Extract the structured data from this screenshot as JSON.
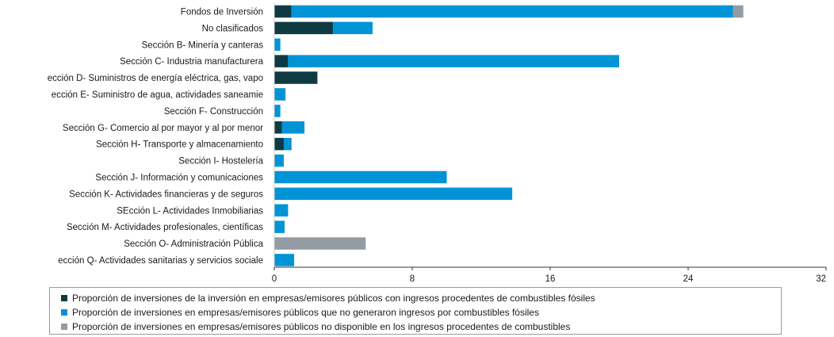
{
  "chart_data": {
    "type": "bar",
    "orientation": "horizontal",
    "stacked": true,
    "categories": [
      "Fondos de Inversión",
      "No clasificados",
      "Sección B- Minería y canteras",
      "Sección C- Industria manufacturera",
      "ección D- Suministros de energía eléctrica, gas, vapo",
      "ección E- Suministro de agua, actividades saneamie",
      "Sección F- Construcción",
      "Sección G- Comercio al por mayor y al por menor",
      "Sección H- Transporte y almacenamiento",
      "Sección I- Hostelería",
      "Sección J- Información y comunicaciones",
      "Sección K- Actividades financieras y de seguros",
      "SEcción L- Actividades Inmobiliarias",
      "Sección M- Actividades profesionales, científicas",
      "Sección O- Administración Pública",
      "ección Q- Actividades sanitarias y servicios sociale"
    ],
    "series": [
      {
        "name": "Proporción de inversiones de la inversión en empresas/emisores públicos con ingresos procedentes de combustibles fósiles",
        "color": "#0e3b43",
        "values": [
          1.0,
          3.4,
          0,
          0.8,
          2.5,
          0,
          0,
          0.45,
          0.55,
          0,
          0,
          0,
          0,
          0,
          0,
          0
        ]
      },
      {
        "name": "Proporción de inversiones en empresas/emisores públicos que no generaron ingresos por combustibles fósiles",
        "color": "#0094d6",
        "values": [
          25.6,
          2.3,
          0.35,
          19.2,
          0,
          0.65,
          0.35,
          1.3,
          0.45,
          0.55,
          10.0,
          13.8,
          0.8,
          0.6,
          0,
          1.15
        ]
      },
      {
        "name": "Proporción de inversiones en empresas/emisores públicos no disponible en los ingresos procedentes de combustibles",
        "color": "#949ca3",
        "values": [
          0.6,
          0,
          0,
          0,
          0,
          0,
          0,
          0,
          0,
          0,
          0,
          0,
          0,
          0,
          5.3,
          0
        ]
      }
    ],
    "xlim": [
      0,
      32
    ],
    "xticks": [
      0,
      8,
      16,
      24,
      32
    ],
    "grid": false,
    "legend_position": "bottom"
  }
}
